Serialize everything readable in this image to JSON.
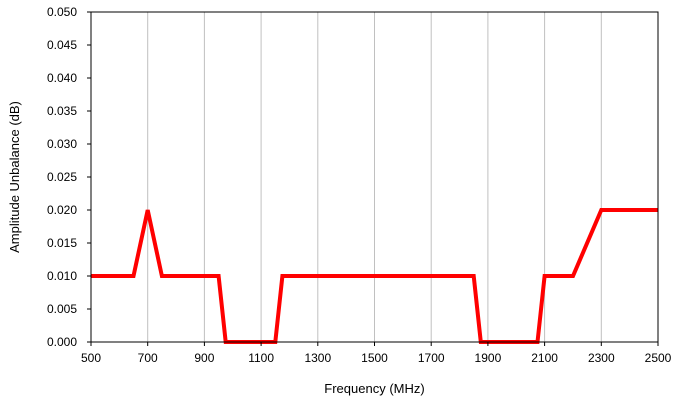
{
  "chart_data": {
    "type": "line",
    "title": "",
    "xlabel": "Frequency (MHz)",
    "ylabel": "Amplitude Unbalance (dB)",
    "xlim": [
      500,
      2500
    ],
    "ylim": [
      0,
      0.05
    ],
    "x_ticks": [
      500,
      700,
      900,
      1100,
      1300,
      1500,
      1700,
      1900,
      2100,
      2300,
      2500
    ],
    "y_ticks": [
      "0.000",
      "0.005",
      "0.010",
      "0.015",
      "0.020",
      "0.025",
      "0.030",
      "0.035",
      "0.040",
      "0.045",
      "0.050"
    ],
    "grid": "vertical",
    "series": [
      {
        "color": "#ff0000",
        "x": [
          500,
          650,
          700,
          750,
          950,
          975,
          1150,
          1175,
          1850,
          1875,
          2075,
          2100,
          2200,
          2300,
          2500
        ],
        "y": [
          0.01,
          0.01,
          0.02,
          0.01,
          0.01,
          0.0,
          0.0,
          0.01,
          0.01,
          0.0,
          0.0,
          0.01,
          0.01,
          0.02,
          0.02
        ]
      }
    ]
  }
}
